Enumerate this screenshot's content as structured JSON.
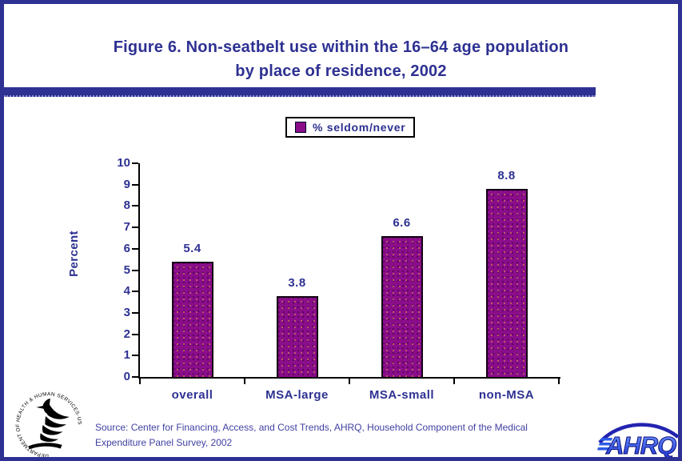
{
  "page": {
    "title_line1": "Figure 6. Non-seatbelt use within the 16–64 age population",
    "title_line2": "by place of residence, 2002"
  },
  "legend": {
    "label": "% seldom/never"
  },
  "chart_data": {
    "type": "bar",
    "title": "Figure 6. Non-seatbelt use within the 16–64 age population by place of residence, 2002",
    "categories": [
      "overall",
      "MSA-large",
      "MSA-small",
      "non-MSA"
    ],
    "values": [
      5.4,
      3.8,
      6.6,
      8.8
    ],
    "series_label": "% seldom/never",
    "xlabel": "",
    "ylabel": "Percent",
    "ylim": [
      0,
      10
    ],
    "yticks": [
      0,
      1,
      2,
      3,
      4,
      5,
      6,
      7,
      8,
      9,
      10
    ],
    "grid": false,
    "legend_position": "top-center",
    "bar_color": "#8A0D8A",
    "value_label_color": "#2E3192"
  },
  "footer": {
    "source_line1": "Source: Center for Financing, Access, and Cost Trends, AHRQ, Household Component of the Medical",
    "source_line2": "Expenditure Panel Survey, 2002",
    "hhs_seal_text": "DEPARTMENT OF HEALTH & HUMAN SERVICES·USA",
    "ahrq_text": "AHRQ"
  },
  "colors": {
    "frame_blue": "#2E3192",
    "text_blue": "#2E3192",
    "bar_purple": "#8A0D8A",
    "axis_black": "#000000"
  }
}
